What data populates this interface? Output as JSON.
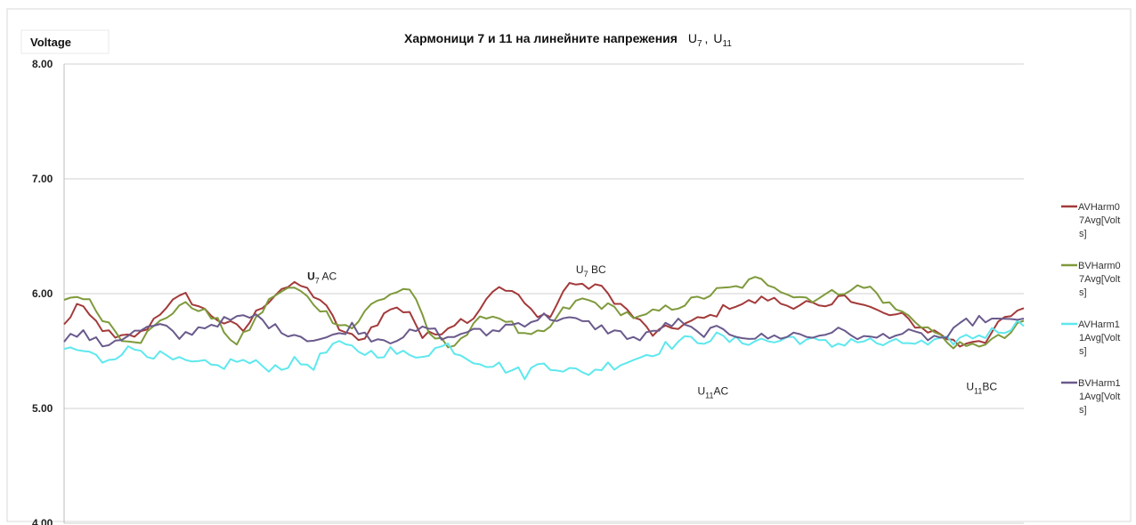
{
  "chart_data": {
    "type": "line",
    "title": {
      "main": "Хармоници 7 и 11 на линейните напрежения",
      "u7": "U",
      "u7_sub": "7",
      "sep": ",",
      "u11": "U",
      "u11_sub": "11"
    },
    "ylabel": "Voltage",
    "xlabel": "",
    "ylim": [
      4.0,
      8.0
    ],
    "yticks": [
      "4.00",
      "5.00",
      "6.00",
      "7.00",
      "8.00"
    ],
    "ytick_values": [
      4.0,
      5.0,
      6.0,
      7.0,
      8.0
    ],
    "grid": true,
    "legend_position": "right",
    "x": {
      "start": 0,
      "end": 150
    },
    "series": [
      {
        "name_lines": [
          "AVHarm0",
          "7Avg[Volt",
          "s]"
        ],
        "color": "#a33a3a",
        "keypoints": [
          [
            0,
            5.72
          ],
          [
            2,
            5.9
          ],
          [
            4,
            5.8
          ],
          [
            8,
            5.6
          ],
          [
            12,
            5.65
          ],
          [
            16,
            5.9
          ],
          [
            19,
            5.98
          ],
          [
            22,
            5.85
          ],
          [
            25,
            5.75
          ],
          [
            28,
            5.68
          ],
          [
            31,
            5.9
          ],
          [
            34,
            6.05
          ],
          [
            37,
            6.07
          ],
          [
            40,
            5.95
          ],
          [
            43,
            5.7
          ],
          [
            46,
            5.58
          ],
          [
            48,
            5.7
          ],
          [
            51,
            5.87
          ],
          [
            54,
            5.85
          ],
          [
            56,
            5.62
          ],
          [
            58,
            5.65
          ],
          [
            61,
            5.75
          ],
          [
            64,
            5.8
          ],
          [
            67,
            6.04
          ],
          [
            70,
            6.02
          ],
          [
            73,
            5.85
          ],
          [
            76,
            5.8
          ],
          [
            79,
            6.11
          ],
          [
            81,
            6.05
          ],
          [
            83,
            6.08
          ],
          [
            86,
            5.95
          ],
          [
            89,
            5.8
          ],
          [
            92,
            5.65
          ],
          [
            95,
            5.7
          ],
          [
            98,
            5.75
          ],
          [
            101,
            5.8
          ],
          [
            104,
            5.9
          ],
          [
            107,
            5.92
          ],
          [
            110,
            5.96
          ],
          [
            113,
            5.9
          ],
          [
            116,
            5.92
          ],
          [
            119,
            5.85
          ],
          [
            122,
            6.0
          ],
          [
            125,
            5.9
          ],
          [
            128,
            5.82
          ],
          [
            131,
            5.8
          ],
          [
            134,
            5.7
          ],
          [
            137,
            5.65
          ],
          [
            140,
            5.55
          ],
          [
            142,
            5.6
          ],
          [
            144,
            5.6
          ],
          [
            147,
            5.78
          ],
          [
            150,
            5.85
          ],
          [
            154,
            5.8
          ],
          [
            157,
            5.78
          ],
          [
            160,
            5.75
          ],
          [
            163,
            5.75
          ]
        ],
        "noise": 0.04
      },
      {
        "name_lines": [
          "BVHarm0",
          "7Avg[Volt",
          "s]"
        ],
        "color": "#7f9a3c",
        "keypoints": [
          [
            0,
            5.96
          ],
          [
            3,
            5.98
          ],
          [
            6,
            5.8
          ],
          [
            9,
            5.62
          ],
          [
            12,
            5.6
          ],
          [
            15,
            5.75
          ],
          [
            18,
            5.9
          ],
          [
            21,
            5.88
          ],
          [
            24,
            5.75
          ],
          [
            27,
            5.55
          ],
          [
            30,
            5.78
          ],
          [
            33,
            6.0
          ],
          [
            36,
            6.05
          ],
          [
            39,
            5.92
          ],
          [
            42,
            5.78
          ],
          [
            45,
            5.7
          ],
          [
            48,
            5.9
          ],
          [
            51,
            6.0
          ],
          [
            54,
            6.05
          ],
          [
            57,
            5.65
          ],
          [
            60,
            5.55
          ],
          [
            63,
            5.65
          ],
          [
            66,
            5.82
          ],
          [
            69,
            5.78
          ],
          [
            72,
            5.62
          ],
          [
            75,
            5.65
          ],
          [
            78,
            5.85
          ],
          [
            81,
            5.95
          ],
          [
            84,
            5.9
          ],
          [
            87,
            5.85
          ],
          [
            90,
            5.78
          ],
          [
            93,
            5.85
          ],
          [
            96,
            5.9
          ],
          [
            99,
            5.95
          ],
          [
            102,
            6.02
          ],
          [
            105,
            6.05
          ],
          [
            108,
            6.12
          ],
          [
            111,
            6.08
          ],
          [
            114,
            5.98
          ],
          [
            117,
            5.96
          ],
          [
            120,
            6.0
          ],
          [
            123,
            6.05
          ],
          [
            126,
            6.05
          ],
          [
            129,
            5.9
          ],
          [
            132,
            5.8
          ],
          [
            135,
            5.7
          ],
          [
            138,
            5.58
          ],
          [
            141,
            5.52
          ],
          [
            144,
            5.58
          ],
          [
            147,
            5.62
          ],
          [
            150,
            5.75
          ],
          [
            154,
            5.72
          ],
          [
            157,
            5.78
          ],
          [
            160,
            5.7
          ],
          [
            163,
            5.72
          ]
        ],
        "noise": 0.04
      },
      {
        "name_lines": [
          "AVHarm1",
          "1Avg[Volt",
          "s]"
        ],
        "color": "#5ee8ee",
        "keypoints": [
          [
            0,
            5.52
          ],
          [
            3,
            5.5
          ],
          [
            6,
            5.42
          ],
          [
            9,
            5.5
          ],
          [
            12,
            5.52
          ],
          [
            15,
            5.45
          ],
          [
            18,
            5.4
          ],
          [
            21,
            5.38
          ],
          [
            24,
            5.36
          ],
          [
            27,
            5.42
          ],
          [
            30,
            5.38
          ],
          [
            33,
            5.36
          ],
          [
            36,
            5.4
          ],
          [
            39,
            5.38
          ],
          [
            42,
            5.55
          ],
          [
            45,
            5.52
          ],
          [
            48,
            5.48
          ],
          [
            51,
            5.5
          ],
          [
            54,
            5.45
          ],
          [
            57,
            5.5
          ],
          [
            60,
            5.55
          ],
          [
            63,
            5.45
          ],
          [
            66,
            5.4
          ],
          [
            69,
            5.35
          ],
          [
            72,
            5.3
          ],
          [
            75,
            5.4
          ],
          [
            78,
            5.35
          ],
          [
            81,
            5.3
          ],
          [
            84,
            5.36
          ],
          [
            87,
            5.4
          ],
          [
            90,
            5.45
          ],
          [
            93,
            5.52
          ],
          [
            96,
            5.58
          ],
          [
            99,
            5.6
          ],
          [
            102,
            5.62
          ],
          [
            105,
            5.58
          ],
          [
            108,
            5.6
          ],
          [
            111,
            5.58
          ],
          [
            114,
            5.62
          ],
          [
            117,
            5.58
          ],
          [
            120,
            5.55
          ],
          [
            123,
            5.6
          ],
          [
            126,
            5.58
          ],
          [
            129,
            5.55
          ],
          [
            132,
            5.58
          ],
          [
            135,
            5.55
          ],
          [
            138,
            5.58
          ],
          [
            141,
            5.62
          ],
          [
            144,
            5.65
          ],
          [
            147,
            5.7
          ],
          [
            150,
            5.75
          ],
          [
            154,
            5.7
          ],
          [
            157,
            5.65
          ],
          [
            160,
            5.68
          ],
          [
            163,
            5.62
          ]
        ],
        "noise": 0.05
      },
      {
        "name_lines": [
          "BVHarm1",
          "1Avg[Volt",
          "s]"
        ],
        "color": "#6a5a8c",
        "keypoints": [
          [
            0,
            5.62
          ],
          [
            3,
            5.65
          ],
          [
            6,
            5.55
          ],
          [
            9,
            5.62
          ],
          [
            12,
            5.68
          ],
          [
            15,
            5.72
          ],
          [
            18,
            5.62
          ],
          [
            21,
            5.7
          ],
          [
            24,
            5.75
          ],
          [
            27,
            5.78
          ],
          [
            30,
            5.8
          ],
          [
            33,
            5.7
          ],
          [
            36,
            5.65
          ],
          [
            39,
            5.6
          ],
          [
            42,
            5.62
          ],
          [
            45,
            5.72
          ],
          [
            48,
            5.62
          ],
          [
            51,
            5.6
          ],
          [
            54,
            5.65
          ],
          [
            57,
            5.7
          ],
          [
            60,
            5.6
          ],
          [
            63,
            5.68
          ],
          [
            66,
            5.65
          ],
          [
            69,
            5.72
          ],
          [
            72,
            5.75
          ],
          [
            75,
            5.8
          ],
          [
            78,
            5.78
          ],
          [
            81,
            5.75
          ],
          [
            84,
            5.7
          ],
          [
            87,
            5.65
          ],
          [
            90,
            5.6
          ],
          [
            93,
            5.7
          ],
          [
            96,
            5.75
          ],
          [
            99,
            5.65
          ],
          [
            102,
            5.68
          ],
          [
            105,
            5.65
          ],
          [
            108,
            5.62
          ],
          [
            111,
            5.62
          ],
          [
            114,
            5.65
          ],
          [
            117,
            5.62
          ],
          [
            120,
            5.68
          ],
          [
            123,
            5.65
          ],
          [
            126,
            5.6
          ],
          [
            129,
            5.65
          ],
          [
            132,
            5.65
          ],
          [
            135,
            5.62
          ],
          [
            138,
            5.62
          ],
          [
            141,
            5.75
          ],
          [
            144,
            5.78
          ],
          [
            147,
            5.75
          ],
          [
            150,
            5.8
          ],
          [
            154,
            5.75
          ],
          [
            157,
            5.8
          ],
          [
            160,
            5.72
          ],
          [
            163,
            5.7
          ]
        ],
        "noise": 0.04
      }
    ],
    "annotations": [
      {
        "base": "U",
        "sub": "7",
        "rest": " AC",
        "x": 38,
        "y": 6.12,
        "bold_base": true
      },
      {
        "base": "U",
        "sub": "7",
        "rest": " BC",
        "x": 80,
        "y": 6.18,
        "bold_base": false
      },
      {
        "base": "U",
        "sub": "11",
        "rest": "AC",
        "x": 99,
        "y": 5.12,
        "bold_base": false
      },
      {
        "base": "U",
        "sub": "11",
        "rest": "BC",
        "x": 141,
        "y": 5.16,
        "bold_base": false
      }
    ]
  }
}
